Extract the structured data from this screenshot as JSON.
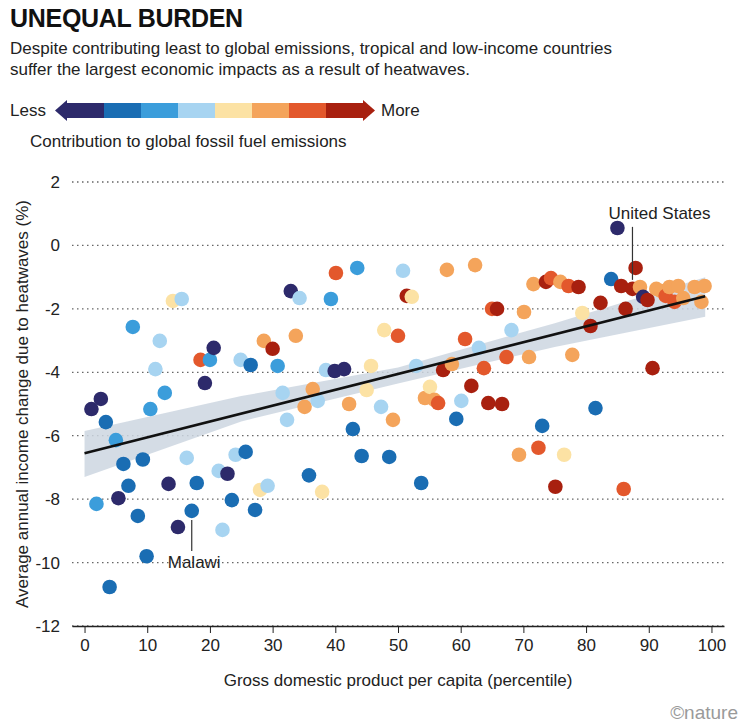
{
  "chart_data": {
    "type": "scatter",
    "title": "UNEQUAL BURDEN",
    "subtitle": "Despite contributing least to global emissions, tropical and low-income countries suffer the largest economic impacts as a result of heatwaves.",
    "x_label": "Gross domestic product per capita (percentile)",
    "y_label": "Average annual income change due to heatwaves (%)",
    "xlim": [
      -2,
      102
    ],
    "ylim": [
      -12,
      2
    ],
    "xticks": [
      0,
      10,
      20,
      30,
      40,
      50,
      60,
      70,
      80,
      90,
      100
    ],
    "yticks": [
      2,
      0,
      -2,
      -4,
      -6,
      -8,
      -10,
      -12
    ],
    "grid": true,
    "marker": "circle",
    "colorbar": {
      "title": "Contribution to global fossil fuel emissions",
      "low_label": "Less",
      "high_label": "More",
      "colors": [
        "#2d2a6b",
        "#1a6db3",
        "#3b9ddb",
        "#a7d4f1",
        "#fce2a4",
        "#f4a45b",
        "#e3582c",
        "#a8200f"
      ]
    },
    "x": [
      1.1,
      2.6,
      1.9,
      3.4,
      4.0,
      5.0,
      5.4,
      6.2,
      7.0,
      7.7,
      8.5,
      9.3,
      9.9,
      10.5,
      11.3,
      12.0,
      12.8,
      13.4,
      14.1,
      14.9,
      15.5,
      16.3,
      17.1,
      17.9,
      18.5,
      19.2,
      20.0,
      20.6,
      21.4,
      22.0,
      22.8,
      23.5,
      24.1,
      24.9,
      25.7,
      26.5,
      27.2,
      28.0,
      28.6,
      29.2,
      30.0,
      30.8,
      31.6,
      32.3,
      32.9,
      33.7,
      34.3,
      35.1,
      35.8,
      36.4,
      37.2,
      37.9,
      38.5,
      39.3,
      39.9,
      40.1,
      41.4,
      42.2,
      42.8,
      43.5,
      44.2,
      45.0,
      45.7,
      47.3,
      47.8,
      48.6,
      49.2,
      50.0,
      50.8,
      51.4,
      52.2,
      52.9,
      53.7,
      54.3,
      55.1,
      55.8,
      56.4,
      57.2,
      57.8,
      58.6,
      59.3,
      60.1,
      60.7,
      61.7,
      62.3,
      62.9,
      63.7,
      64.4,
      65.0,
      65.8,
      66.6,
      67.3,
      68.1,
      69.3,
      70.1,
      70.9,
      71.6,
      72.4,
      73.0,
      73.6,
      74.4,
      75.1,
      75.9,
      76.5,
      77.2,
      77.8,
      78.8,
      79.4,
      80.7,
      81.5,
      82.3,
      84.0,
      85.0,
      85.6,
      86.0,
      86.3,
      87.4,
      87.9,
      88.6,
      89.1,
      89.8,
      90.6,
      91.2,
      92.0,
      92.7,
      93.3,
      94.1,
      94.7,
      95.5,
      97.3,
      98.4,
      98.9
    ],
    "values": [
      -5.16,
      -4.84,
      -8.15,
      -5.57,
      -10.77,
      -6.14,
      -7.97,
      -6.89,
      -7.58,
      -2.57,
      -8.53,
      -6.75,
      -9.8,
      -5.16,
      -3.9,
      -3.01,
      -4.65,
      -7.52,
      -1.75,
      -8.88,
      -1.69,
      -6.7,
      -8.37,
      -7.49,
      -3.61,
      -4.34,
      -3.61,
      -3.23,
      -7.11,
      -8.97,
      -7.2,
      -8.03,
      -6.6,
      -3.61,
      -6.51,
      -3.77,
      -8.34,
      -7.71,
      -3.01,
      -7.58,
      -3.26,
      -3.8,
      -4.65,
      -5.5,
      -1.44,
      -2.85,
      -1.66,
      -5.09,
      -7.25,
      -4.53,
      -4.9,
      -7.77,
      -3.93,
      -1.69,
      -3.96,
      -0.87,
      -3.9,
      -5.0,
      -5.79,
      -0.71,
      -6.64,
      -4.56,
      -3.8,
      -5.09,
      -2.67,
      -6.67,
      -5.5,
      -2.85,
      -0.8,
      -1.59,
      -1.62,
      -3.8,
      -7.49,
      -4.81,
      -4.46,
      -4.87,
      -4.97,
      -3.93,
      -0.77,
      -3.74,
      -5.47,
      -4.9,
      -2.95,
      -4.43,
      -0.62,
      -3.23,
      -3.87,
      -4.97,
      -2.0,
      -2.0,
      -5.0,
      -3.52,
      -2.67,
      -6.6,
      -2.1,
      -3.52,
      -1.22,
      -6.38,
      -5.69,
      -1.15,
      -1.03,
      -7.61,
      -1.15,
      -6.6,
      -1.28,
      -3.45,
      -1.31,
      -2.13,
      -2.54,
      -5.13,
      -1.81,
      -1.06,
      0.55,
      -1.28,
      -7.68,
      -2.0,
      -1.37,
      -0.71,
      -1.31,
      -1.62,
      -1.72,
      -3.87,
      -1.37,
      -1.44,
      -1.59,
      -1.31,
      -1.78,
      -1.28,
      -1.66,
      -1.31,
      -1.78,
      -1.28
    ],
    "colors": [
      "#2d2a6b",
      "#2d2a6b",
      "#3b9ddb",
      "#1a6db3",
      "#1a6db3",
      "#3b9ddb",
      "#2d2a6b",
      "#1a6db3",
      "#1a6db3",
      "#3b9ddb",
      "#1a6db3",
      "#1a6db3",
      "#1a6db3",
      "#3b9ddb",
      "#a7d4f1",
      "#a7d4f1",
      "#3b9ddb",
      "#2d2a6b",
      "#fce2a4",
      "#2d2a6b",
      "#a7d4f1",
      "#a7d4f1",
      "#1a6db3",
      "#1a6db3",
      "#e3582c",
      "#2d2a6b",
      "#3b9ddb",
      "#2d2a6b",
      "#a7d4f1",
      "#a7d4f1",
      "#2d2a6b",
      "#1a6db3",
      "#a7d4f1",
      "#a7d4f1",
      "#1a6db3",
      "#1a6db3",
      "#1a6db3",
      "#fce2a4",
      "#f4a45b",
      "#a7d4f1",
      "#a8200f",
      "#3b9ddb",
      "#a7d4f1",
      "#a7d4f1",
      "#2d2a6b",
      "#f4a45b",
      "#a7d4f1",
      "#f4a45b",
      "#1a6db3",
      "#f4a45b",
      "#a7d4f1",
      "#fce2a4",
      "#a7d4f1",
      "#3b9ddb",
      "#2d2a6b",
      "#e3582c",
      "#2d2a6b",
      "#f4a45b",
      "#1a6db3",
      "#3b9ddb",
      "#1a6db3",
      "#fce2a4",
      "#fce2a4",
      "#a7d4f1",
      "#fce2a4",
      "#1a6db3",
      "#f4a45b",
      "#e3582c",
      "#a7d4f1",
      "#a8200f",
      "#fce2a4",
      "#a7d4f1",
      "#1a6db3",
      "#f4a45b",
      "#fce2a4",
      "#f4a45b",
      "#e3582c",
      "#a8200f",
      "#f4a45b",
      "#f4a45b",
      "#1a6db3",
      "#a7d4f1",
      "#e3582c",
      "#a8200f",
      "#f4a45b",
      "#a7d4f1",
      "#e3582c",
      "#a8200f",
      "#e3582c",
      "#a8200f",
      "#a8200f",
      "#e3582c",
      "#a7d4f1",
      "#f4a45b",
      "#f4a45b",
      "#f4a45b",
      "#f4a45b",
      "#e3582c",
      "#1a6db3",
      "#a8200f",
      "#e3582c",
      "#a8200f",
      "#f4a45b",
      "#fce2a4",
      "#e3582c",
      "#f4a45b",
      "#a8200f",
      "#fce2a4",
      "#a8200f",
      "#1a6db3",
      "#a8200f",
      "#1a6db3",
      "#2d2a6b",
      "#a8200f",
      "#e3582c",
      "#a8200f",
      "#a8200f",
      "#a8200f",
      "#f4a45b",
      "#2d2a6b",
      "#a8200f",
      "#a8200f",
      "#f4a45b",
      "#f4a45b",
      "#e3582c",
      "#f4a45b",
      "#e3582c",
      "#f4a45b",
      "#f4a45b",
      "#f4a45b",
      "#f4a45b",
      "#f4a45b"
    ],
    "trend": {
      "x": [
        0,
        99
      ],
      "y": [
        -6.55,
        -1.6
      ]
    },
    "trend_band": {
      "x": [
        0,
        25,
        50,
        75,
        99
      ],
      "lower": [
        -7.3,
        -5.55,
        -4.35,
        -3.2,
        -2.25
      ],
      "upper": [
        -5.85,
        -4.75,
        -3.85,
        -2.45,
        -1.0
      ]
    },
    "annotations": [
      {
        "text": "United States",
        "x": 87.4,
        "y": -1.37
      },
      {
        "text": "Malawi",
        "x": 17.1,
        "y": -8.37
      }
    ],
    "credit": "©nature"
  }
}
